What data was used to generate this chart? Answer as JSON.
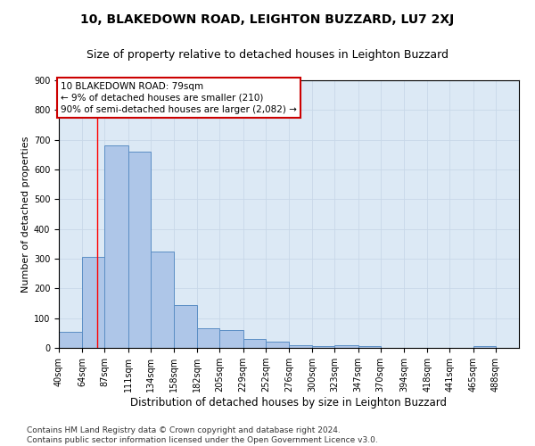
{
  "title": "10, BLAKEDOWN ROAD, LEIGHTON BUZZARD, LU7 2XJ",
  "subtitle": "Size of property relative to detached houses in Leighton Buzzard",
  "xlabel": "Distribution of detached houses by size in Leighton Buzzard",
  "ylabel": "Number of detached properties",
  "bar_color": "#aec6e8",
  "bar_edge_color": "#5b8ec4",
  "grid_color": "#c8d8e8",
  "background_color": "#dce9f5",
  "annotation_box_color": "#cc0000",
  "annotation_text": "10 BLAKEDOWN ROAD: 79sqm\n← 9% of detached houses are smaller (210)\n90% of semi-detached houses are larger (2,082) →",
  "property_size": 79,
  "bins": [
    40,
    64,
    87,
    111,
    134,
    158,
    182,
    205,
    229,
    252,
    276,
    300,
    323,
    347,
    370,
    394,
    418,
    441,
    465,
    488,
    512
  ],
  "counts": [
    55,
    305,
    680,
    660,
    325,
    145,
    65,
    60,
    30,
    20,
    10,
    5,
    10,
    5,
    0,
    0,
    0,
    0,
    5,
    0,
    0
  ],
  "ylim": [
    0,
    900
  ],
  "yticks": [
    0,
    100,
    200,
    300,
    400,
    500,
    600,
    700,
    800,
    900
  ],
  "footer_text": "Contains HM Land Registry data © Crown copyright and database right 2024.\nContains public sector information licensed under the Open Government Licence v3.0.",
  "title_fontsize": 10,
  "subtitle_fontsize": 9,
  "ylabel_fontsize": 8,
  "xlabel_fontsize": 8.5,
  "tick_fontsize": 7,
  "footer_fontsize": 6.5,
  "annotation_fontsize": 7.5
}
